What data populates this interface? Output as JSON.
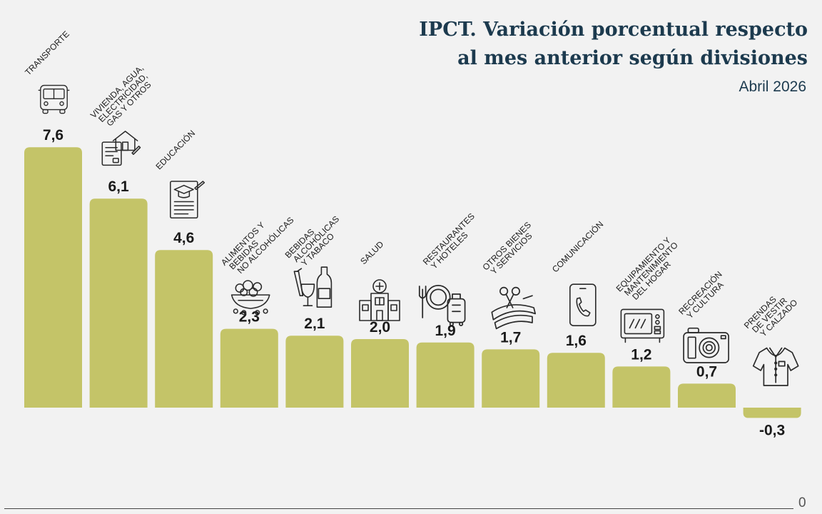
{
  "title_line1": "IPCT. Variación porcentual respecto",
  "title_line2": "al mes anterior según divisiones",
  "subtitle": "Abril 2026",
  "footer_number": "0",
  "colors": {
    "bar": "#c4c468",
    "text": "#1a1a1a",
    "icon": "#2a2a2a",
    "title": "#1c3a4e",
    "background": "#f2f2f2"
  },
  "chart_data": {
    "type": "bar",
    "grid": false,
    "legend": "none",
    "categories": [
      [
        "TRANSPORTE"
      ],
      [
        "VIVIENDA, AGUA,",
        "ELECTRICIDAD,",
        "GAS Y OTROS"
      ],
      [
        "EDUCACIÓN"
      ],
      [
        "ALIMENTOS Y",
        "BEBIDAS",
        "NO ALCOHÓLICAS"
      ],
      [
        "BEBIDAS",
        "ALCOHÓLICAS",
        "Y TABACO"
      ],
      [
        "SALUD"
      ],
      [
        "RESTAURANTES",
        "Y HOTELES"
      ],
      [
        "OTROS BIENES",
        "Y SERVICIOS"
      ],
      [
        "COMUNICACIÓN"
      ],
      [
        "EQUIPAMIENTO Y",
        "MANTENIMIENTO",
        "DEL HOGAR"
      ],
      [
        "RECREACIÓN",
        "Y CULTURA"
      ],
      [
        "PRENDAS",
        "DE VESTIR",
        "Y CALZADO"
      ]
    ],
    "values": [
      7.6,
      6.1,
      4.6,
      2.3,
      2.1,
      2.0,
      1.9,
      1.7,
      1.6,
      1.2,
      0.7,
      -0.3
    ],
    "value_labels": [
      "7,6",
      "6,1",
      "4,6",
      "2,3",
      "2,1",
      "2,0",
      "1,9",
      "1,7",
      "1,6",
      "1,2",
      "0,7",
      "-0,3"
    ],
    "icons": [
      "bus-icon",
      "house-document-icon",
      "graduation-document-icon",
      "food-bowl-icon",
      "wine-bottle-icon",
      "hospital-icon",
      "restaurant-luggage-icon",
      "scissors-ribbon-icon",
      "phone-icon",
      "microwave-icon",
      "camera-icon",
      "shirt-icon"
    ],
    "ylim": [
      -0.3,
      7.6
    ]
  }
}
